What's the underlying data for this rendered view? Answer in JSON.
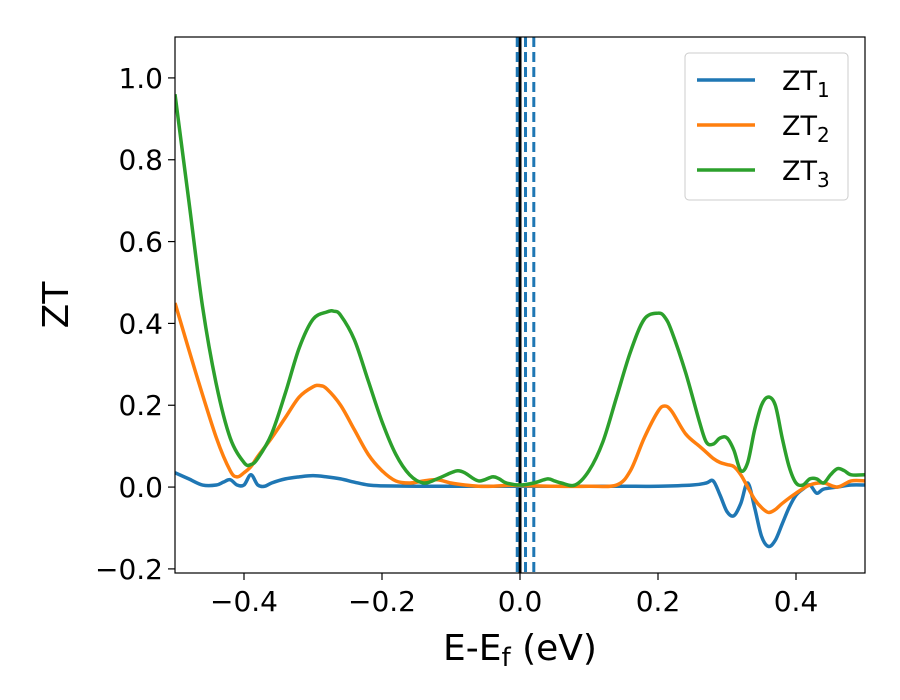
{
  "chart_data": {
    "type": "line",
    "xlabel": "E-E",
    "xlabel_sub": "f",
    "xlabel_unit": " (eV)",
    "ylabel": "ZT",
    "xlim": [
      -0.5,
      0.5
    ],
    "ylim": [
      -0.21,
      1.1
    ],
    "xticks": [
      -0.4,
      -0.2,
      0.0,
      0.2,
      0.4
    ],
    "xtick_labels": [
      "−0.4",
      "−0.2",
      "0.0",
      "0.2",
      "0.4"
    ],
    "yticks": [
      -0.2,
      0.0,
      0.2,
      0.4,
      0.6,
      0.8,
      1.0
    ],
    "ytick_labels": [
      "−0.2",
      "0.0",
      "0.2",
      "0.4",
      "0.6",
      "0.8",
      "1.0"
    ],
    "legend_position": "top-right",
    "grid": false,
    "vlines": [
      {
        "x": 0.0,
        "color": "#000000",
        "style": "solid"
      },
      {
        "x": -0.004,
        "color": "#1f77b4",
        "style": "dashed"
      },
      {
        "x": 0.008,
        "color": "#1f77b4",
        "style": "dashed"
      },
      {
        "x": 0.02,
        "color": "#1f77b4",
        "style": "dashed"
      }
    ],
    "series": [
      {
        "name": "ZT",
        "name_sub": "1",
        "color": "#1f77b4",
        "x": [
          -0.5,
          -0.48,
          -0.46,
          -0.44,
          -0.43,
          -0.42,
          -0.41,
          -0.4,
          -0.39,
          -0.38,
          -0.37,
          -0.36,
          -0.34,
          -0.32,
          -0.3,
          -0.28,
          -0.26,
          -0.24,
          -0.22,
          -0.2,
          -0.15,
          -0.1,
          -0.05,
          0.0,
          0.05,
          0.1,
          0.15,
          0.2,
          0.25,
          0.27,
          0.28,
          0.29,
          0.3,
          0.31,
          0.32,
          0.33,
          0.34,
          0.35,
          0.36,
          0.37,
          0.38,
          0.39,
          0.4,
          0.41,
          0.42,
          0.43,
          0.44,
          0.46,
          0.48,
          0.5
        ],
        "y": [
          0.035,
          0.02,
          0.005,
          0.005,
          0.012,
          0.018,
          0.005,
          0.005,
          0.03,
          0.005,
          0.002,
          0.01,
          0.02,
          0.025,
          0.028,
          0.025,
          0.02,
          0.012,
          0.005,
          0.003,
          0.002,
          0.002,
          0.002,
          0.002,
          0.002,
          0.002,
          0.002,
          0.002,
          0.005,
          0.01,
          0.015,
          -0.02,
          -0.06,
          -0.07,
          -0.04,
          0.01,
          -0.05,
          -0.12,
          -0.145,
          -0.13,
          -0.09,
          -0.05,
          -0.02,
          -0.005,
          0.005,
          -0.015,
          -0.005,
          0.0,
          0.005,
          0.005
        ]
      },
      {
        "name": "ZT",
        "name_sub": "2",
        "color": "#ff7f0e",
        "x": [
          -0.5,
          -0.47,
          -0.44,
          -0.42,
          -0.41,
          -0.4,
          -0.39,
          -0.38,
          -0.36,
          -0.34,
          -0.32,
          -0.3,
          -0.29,
          -0.28,
          -0.26,
          -0.24,
          -0.22,
          -0.2,
          -0.18,
          -0.16,
          -0.14,
          -0.12,
          -0.1,
          -0.08,
          -0.06,
          -0.04,
          -0.02,
          0.0,
          0.05,
          0.1,
          0.14,
          0.16,
          0.18,
          0.2,
          0.21,
          0.22,
          0.24,
          0.26,
          0.27,
          0.28,
          0.29,
          0.3,
          0.31,
          0.32,
          0.33,
          0.34,
          0.35,
          0.36,
          0.37,
          0.38,
          0.4,
          0.42,
          0.44,
          0.46,
          0.48,
          0.5
        ],
        "y": [
          0.45,
          0.28,
          0.12,
          0.04,
          0.025,
          0.035,
          0.05,
          0.075,
          0.12,
          0.17,
          0.22,
          0.245,
          0.248,
          0.24,
          0.2,
          0.14,
          0.08,
          0.04,
          0.015,
          0.01,
          0.015,
          0.018,
          0.01,
          0.005,
          0.002,
          0.002,
          0.004,
          0.004,
          0.002,
          0.002,
          0.005,
          0.04,
          0.12,
          0.185,
          0.198,
          0.185,
          0.13,
          0.1,
          0.085,
          0.07,
          0.06,
          0.055,
          0.05,
          0.03,
          0.0,
          -0.03,
          -0.05,
          -0.062,
          -0.055,
          -0.04,
          -0.015,
          0.005,
          0.01,
          0.0,
          0.015,
          0.015
        ]
      },
      {
        "name": "ZT",
        "name_sub": "3",
        "color": "#2ca02c",
        "x": [
          -0.5,
          -0.48,
          -0.46,
          -0.44,
          -0.42,
          -0.4,
          -0.39,
          -0.38,
          -0.36,
          -0.34,
          -0.32,
          -0.3,
          -0.28,
          -0.27,
          -0.26,
          -0.24,
          -0.22,
          -0.2,
          -0.18,
          -0.16,
          -0.14,
          -0.12,
          -0.1,
          -0.09,
          -0.08,
          -0.06,
          -0.04,
          -0.03,
          -0.02,
          0.0,
          0.02,
          0.04,
          0.05,
          0.06,
          0.08,
          0.1,
          0.12,
          0.14,
          0.16,
          0.18,
          0.2,
          0.21,
          0.22,
          0.24,
          0.26,
          0.27,
          0.28,
          0.29,
          0.3,
          0.31,
          0.32,
          0.33,
          0.34,
          0.35,
          0.36,
          0.37,
          0.38,
          0.39,
          0.4,
          0.41,
          0.42,
          0.43,
          0.44,
          0.45,
          0.46,
          0.47,
          0.48,
          0.5
        ],
        "y": [
          0.96,
          0.7,
          0.44,
          0.25,
          0.12,
          0.06,
          0.055,
          0.07,
          0.13,
          0.23,
          0.34,
          0.41,
          0.428,
          0.43,
          0.42,
          0.36,
          0.26,
          0.16,
          0.08,
          0.03,
          0.01,
          0.02,
          0.035,
          0.04,
          0.035,
          0.015,
          0.025,
          0.02,
          0.01,
          0.005,
          0.01,
          0.02,
          0.015,
          0.01,
          0.005,
          0.04,
          0.11,
          0.22,
          0.33,
          0.41,
          0.425,
          0.415,
          0.38,
          0.28,
          0.16,
          0.11,
          0.105,
          0.12,
          0.12,
          0.09,
          0.04,
          0.06,
          0.14,
          0.2,
          0.22,
          0.2,
          0.12,
          0.05,
          0.01,
          0.005,
          0.02,
          0.02,
          0.01,
          0.03,
          0.045,
          0.04,
          0.03,
          0.03
        ]
      }
    ]
  }
}
